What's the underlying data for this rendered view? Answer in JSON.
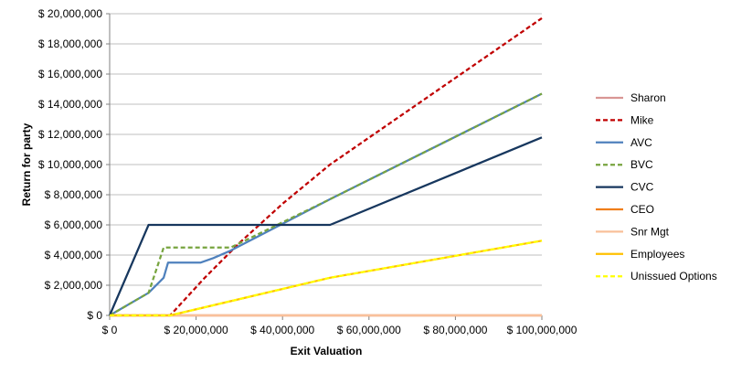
{
  "chart_data": {
    "type": "line",
    "xlabel": "Exit Valuation",
    "ylabel": "Return for party",
    "xlim": [
      0,
      100000000
    ],
    "ylim": [
      0,
      20000000
    ],
    "x_ticks": [
      0,
      20000000,
      40000000,
      60000000,
      80000000,
      100000000
    ],
    "x_tick_labels": [
      "$ 0",
      "$ 20,000,000",
      "$ 40,000,000",
      "$ 60,000,000",
      "$ 80,000,000",
      "$ 100,000,000"
    ],
    "y_ticks": [
      0,
      2000000,
      4000000,
      6000000,
      8000000,
      10000000,
      12000000,
      14000000,
      16000000,
      18000000,
      20000000
    ],
    "y_tick_labels": [
      "$ 0",
      "$ 2,000,000",
      "$ 4,000,000",
      "$ 6,000,000",
      "$ 8,000,000",
      "$ 10,000,000",
      "$ 12,000,000",
      "$ 14,000,000",
      "$ 16,000,000",
      "$ 18,000,000",
      "$ 20,000,000"
    ],
    "grid": "horizontal",
    "legend_position": "right",
    "series": [
      {
        "name": "Sharon",
        "color": "#d99694",
        "dash": "solid",
        "x": [
          0,
          20000000,
          40000000,
          60000000,
          80000000,
          100000000
        ],
        "y": [
          0,
          0,
          0,
          0,
          0,
          0
        ]
      },
      {
        "name": "Mike",
        "color": "#c00000",
        "dash": "dashed",
        "x": [
          0,
          14000000,
          22000000,
          30000000,
          40000000,
          51000000,
          100000000
        ],
        "y": [
          0,
          0,
          2500000,
          4800000,
          7400000,
          10000000,
          19700000
        ]
      },
      {
        "name": "AVC",
        "color": "#4f81bd",
        "dash": "solid",
        "x": [
          0,
          9000000,
          12500000,
          13500000,
          21000000,
          24000000,
          28000000,
          51000000,
          100000000
        ],
        "y": [
          0,
          1500000,
          2500000,
          3500000,
          3500000,
          3800000,
          4300000,
          7700000,
          14700000
        ]
      },
      {
        "name": "BVC",
        "color": "#77a43f",
        "dash": "dashed",
        "x": [
          0,
          9000000,
          12500000,
          28000000,
          51000000,
          100000000
        ],
        "y": [
          0,
          1500000,
          4500000,
          4500000,
          7700000,
          14700000
        ]
      },
      {
        "name": "CVC",
        "color": "#17375e",
        "dash": "solid",
        "x": [
          0,
          9000000,
          51000000,
          100000000
        ],
        "y": [
          0,
          6000000,
          6000000,
          11800000
        ]
      },
      {
        "name": "CEO",
        "color": "#f07e1a",
        "dash": "solid",
        "x": [
          0,
          100000000
        ],
        "y": [
          0,
          0
        ]
      },
      {
        "name": "Snr Mgt",
        "color": "#f9c09a",
        "dash": "solid",
        "x": [
          0,
          100000000
        ],
        "y": [
          0,
          0
        ]
      },
      {
        "name": "Employees",
        "color": "#ffc000",
        "dash": "solid",
        "x": [
          0,
          14000000,
          51000000,
          100000000
        ],
        "y": [
          0,
          0,
          2500000,
          4950000
        ]
      },
      {
        "name": "Unissued Options",
        "color": "#ffff00",
        "dash": "dashed",
        "x": [
          0,
          14000000,
          51000000,
          100000000
        ],
        "y": [
          0,
          0,
          2500000,
          4950000
        ]
      }
    ]
  }
}
